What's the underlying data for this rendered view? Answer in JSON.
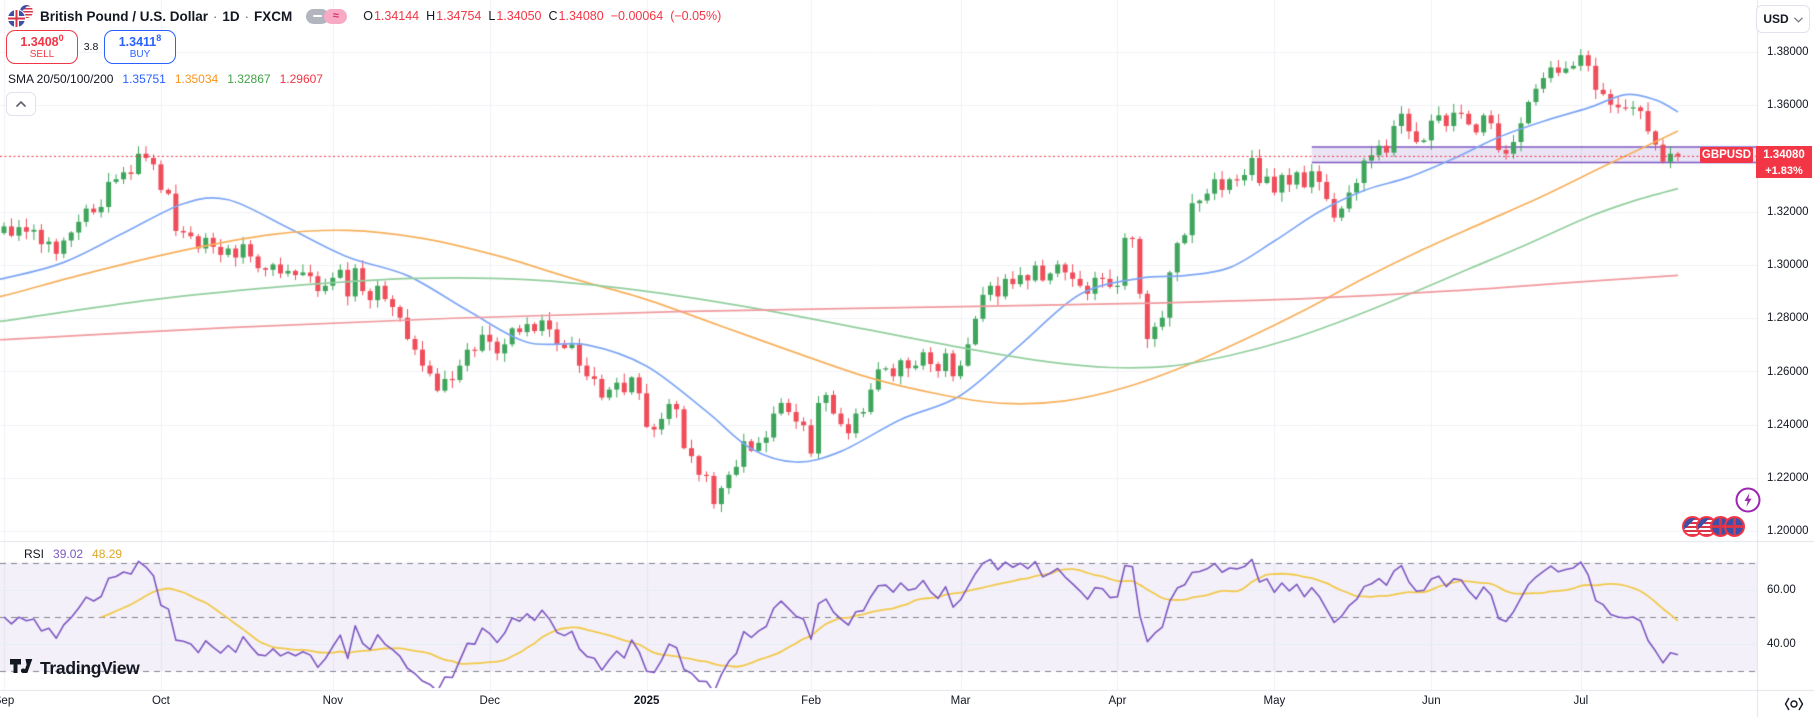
{
  "header": {
    "symbol": "British Pound / U.S. Dollar",
    "separator": "·",
    "interval": "1D",
    "exchange": "FXCM",
    "icons": {
      "wave": "≈"
    },
    "ohlc": {
      "o_label": "O",
      "o": "1.34144",
      "h_label": "H",
      "h": "1.34754",
      "l_label": "L",
      "l": "1.34050",
      "c_label": "C",
      "c": "1.34080",
      "change": "−0.00064",
      "change_pct": "(−0.05%)"
    }
  },
  "trade_panel": {
    "sell_price": "1.3408",
    "sell_sup": "0",
    "sell_label": "SELL",
    "spread": "3.8",
    "buy_price": "1.3411",
    "buy_sup": "8",
    "buy_label": "BUY"
  },
  "indicators": {
    "sma": {
      "label": "SMA 20/50/100/200",
      "values": [
        {
          "v": "1.35751"
        },
        {
          "v": "1.35034"
        },
        {
          "v": "1.32867"
        },
        {
          "v": "1.29607"
        }
      ]
    },
    "rsi": {
      "label": "RSI",
      "value": "39.02",
      "ma_value": "48.29"
    }
  },
  "price_scale": {
    "currency": "USD",
    "symbol_label": "GBPUSD",
    "last_price": "1.34080",
    "change_pct": "+1.83%"
  },
  "logo": {
    "text": "TradingView"
  },
  "palette": {
    "up_candle": "#3fa55c",
    "down_candle": "#ef4d5a",
    "sma20": "#7ea6f5",
    "sma50": "#f7b05c",
    "sma100": "#93cf9e",
    "sma200": "#f09a9e",
    "sma20_text": "#2962ff",
    "sma50_text": "#f7941d",
    "sma100_text": "#43a047",
    "sma200_text": "#f23645",
    "accent_red": "#f23645",
    "accent_blue": "#2962ff",
    "rsi_line": "#7e57c2",
    "rsi_ma_line": "#f2c94c",
    "channel_fill": "rgba(126,87,194,0.16)",
    "channel_border": "#7e57c2",
    "grid": "#f0f2f7",
    "separator": "#e0e3eb"
  },
  "event_markers": {
    "lightning": true,
    "flag_count": 4
  },
  "chart_data": {
    "type": "candlestick",
    "symbol": "GBPUSD",
    "interval": "1D",
    "current_price": 1.3408,
    "price_axis": {
      "min": 1.2,
      "max": 1.38,
      "tick_step": 0.02,
      "ticks": [
        {
          "label": "1.38000",
          "value": 1.38
        },
        {
          "label": "1.36000",
          "value": 1.36
        },
        {
          "label": "1.32000",
          "value": 1.32
        },
        {
          "label": "1.30000",
          "value": 1.3
        },
        {
          "label": "1.28000",
          "value": 1.28
        },
        {
          "label": "1.26000",
          "value": 1.26
        },
        {
          "label": "1.24000",
          "value": 1.24
        },
        {
          "label": "1.22000",
          "value": 1.22
        },
        {
          "label": "1.20000",
          "value": 1.2
        }
      ]
    },
    "x_ticks": [
      {
        "label": "Sep",
        "day": 0
      },
      {
        "label": "Oct",
        "day": 21
      },
      {
        "label": "Nov",
        "day": 44
      },
      {
        "label": "Dec",
        "day": 65
      },
      {
        "label": "2025",
        "day": 86,
        "bold": true
      },
      {
        "label": "Feb",
        "day": 108
      },
      {
        "label": "Mar",
        "day": 128
      },
      {
        "label": "Apr",
        "day": 149
      },
      {
        "label": "May",
        "day": 170
      },
      {
        "label": "Jun",
        "day": 191
      },
      {
        "label": "Jul",
        "day": 211
      }
    ],
    "first_open": 1.312,
    "closes": [
      1.3145,
      1.311,
      1.3142,
      1.3125,
      1.3132,
      1.3078,
      1.3088,
      1.3042,
      1.3092,
      1.3122,
      1.3162,
      1.3212,
      1.3198,
      1.3218,
      1.3312,
      1.3322,
      1.3348,
      1.3342,
      1.3418,
      1.3402,
      1.3378,
      1.3282,
      1.3268,
      1.3128,
      1.3122,
      1.3108,
      1.3062,
      1.3102,
      1.3068,
      1.3038,
      1.3062,
      1.3028,
      1.3078,
      1.3032,
      1.2988,
      1.2982,
      1.3002,
      1.2968,
      1.2978,
      1.2962,
      1.2972,
      1.2958,
      1.2902,
      1.2922,
      1.2952,
      1.2982,
      1.2882,
      1.2988,
      1.2902,
      1.2868,
      1.2922,
      1.2872,
      1.2842,
      1.2802,
      1.2722,
      1.2682,
      1.2622,
      1.2592,
      1.2528,
      1.2572,
      1.2568,
      1.2622,
      1.2682,
      1.2678,
      1.2738,
      1.2712,
      1.2668,
      1.2702,
      1.2762,
      1.2748,
      1.2778,
      1.2752,
      1.2792,
      1.2758,
      1.2702,
      1.2688,
      1.2702,
      1.2622,
      1.2582,
      1.2572,
      1.2502,
      1.2532,
      1.2558,
      1.2522,
      1.2578,
      1.2518,
      1.2392,
      1.2382,
      1.2422,
      1.2478,
      1.2458,
      1.2312,
      1.2282,
      1.2212,
      1.2208,
      1.2102,
      1.2162,
      1.2212,
      1.2242,
      1.2338,
      1.2302,
      1.2332,
      1.2352,
      1.2442,
      1.2482,
      1.2448,
      1.2412,
      1.2398,
      1.2292,
      1.2482,
      1.2512,
      1.2442,
      1.2402,
      1.2368,
      1.2442,
      1.2448,
      1.2532,
      1.2608,
      1.2612,
      1.2582,
      1.2642,
      1.2612,
      1.2622,
      1.2672,
      1.2628,
      1.2602,
      1.2668,
      1.2582,
      1.2622,
      1.2702,
      1.2798,
      1.2888,
      1.2922,
      1.2882,
      1.2948,
      1.2928,
      1.2962,
      1.2942,
      1.2998,
      1.2942,
      1.2968,
      1.3002,
      1.2972,
      1.2948,
      1.2922,
      1.2892,
      1.2952,
      1.2948,
      1.2918,
      1.2922,
      1.3102,
      1.3098,
      1.2892,
      1.2722,
      1.2768,
      1.2802,
      1.2972,
      1.3082,
      1.3112,
      1.3232,
      1.3242,
      1.3268,
      1.3322,
      1.3282,
      1.3322,
      1.3318,
      1.3338,
      1.3402,
      1.3308,
      1.3332,
      1.3272,
      1.3338,
      1.3302,
      1.3348,
      1.3292,
      1.3352,
      1.3312,
      1.3248,
      1.3178,
      1.3212,
      1.3272,
      1.3308,
      1.3392,
      1.3412,
      1.3448,
      1.3422,
      1.3522,
      1.3568,
      1.3502,
      1.3462,
      1.3468,
      1.3542,
      1.3562,
      1.3522,
      1.3572,
      1.3568,
      1.3528,
      1.3498,
      1.3562,
      1.3532,
      1.3432,
      1.3418,
      1.3462,
      1.3532,
      1.3612,
      1.3662,
      1.3702,
      1.3742,
      1.3722,
      1.3738,
      1.3748,
      1.3788,
      1.3748,
      1.3658,
      1.3642,
      1.3602,
      1.3592,
      1.3588,
      1.3592,
      1.3578,
      1.3502,
      1.3452,
      1.3388,
      1.3418,
      1.3408
    ],
    "channel_band": {
      "start_day": 175,
      "top": 1.3443,
      "bottom": 1.3385
    },
    "overlays": [
      {
        "name": "SMA 20",
        "color": "#7ea6f5",
        "anchors": [
          [
            -1,
            1.295
          ],
          [
            0,
            1.295
          ],
          [
            8,
            1.301
          ],
          [
            16,
            1.312
          ],
          [
            24,
            1.323
          ],
          [
            30,
            1.3245
          ],
          [
            38,
            1.314
          ],
          [
            46,
            1.303
          ],
          [
            54,
            1.296
          ],
          [
            62,
            1.283
          ],
          [
            70,
            1.271
          ],
          [
            78,
            1.27
          ],
          [
            86,
            1.262
          ],
          [
            94,
            1.245
          ],
          [
            100,
            1.231
          ],
          [
            106,
            1.226
          ],
          [
            112,
            1.23
          ],
          [
            120,
            1.242
          ],
          [
            128,
            1.251
          ],
          [
            136,
            1.27
          ],
          [
            144,
            1.289
          ],
          [
            152,
            1.295
          ],
          [
            158,
            1.296
          ],
          [
            164,
            1.299
          ],
          [
            170,
            1.309
          ],
          [
            176,
            1.32
          ],
          [
            182,
            1.328
          ],
          [
            188,
            1.333
          ],
          [
            194,
            1.34
          ],
          [
            200,
            1.348
          ],
          [
            206,
            1.354
          ],
          [
            212,
            1.359
          ],
          [
            217,
            1.364
          ],
          [
            221,
            1.362
          ],
          [
            224,
            1.3575
          ]
        ]
      },
      {
        "name": "SMA 50",
        "color": "#f7b05c",
        "anchors": [
          [
            -1,
            1.2885
          ],
          [
            0,
            1.2885
          ],
          [
            12,
            1.2975
          ],
          [
            24,
            1.3055
          ],
          [
            36,
            1.3115
          ],
          [
            46,
            1.313
          ],
          [
            56,
            1.31
          ],
          [
            66,
            1.3035
          ],
          [
            76,
            1.295
          ],
          [
            86,
            1.287
          ],
          [
            96,
            1.277
          ],
          [
            106,
            1.267
          ],
          [
            116,
            1.2575
          ],
          [
            126,
            1.251
          ],
          [
            134,
            1.248
          ],
          [
            142,
            1.249
          ],
          [
            150,
            1.254
          ],
          [
            158,
            1.262
          ],
          [
            166,
            1.272
          ],
          [
            174,
            1.283
          ],
          [
            182,
            1.295
          ],
          [
            190,
            1.306
          ],
          [
            198,
            1.316
          ],
          [
            206,
            1.326
          ],
          [
            214,
            1.337
          ],
          [
            220,
            1.345
          ],
          [
            224,
            1.3503
          ]
        ]
      },
      {
        "name": "SMA 100",
        "color": "#93cf9e",
        "anchors": [
          [
            -1,
            1.279
          ],
          [
            0,
            1.279
          ],
          [
            20,
            1.287
          ],
          [
            40,
            1.2925
          ],
          [
            55,
            1.295
          ],
          [
            70,
            1.2945
          ],
          [
            85,
            1.2905
          ],
          [
            100,
            1.284
          ],
          [
            115,
            1.276
          ],
          [
            130,
            1.268
          ],
          [
            140,
            1.2635
          ],
          [
            148,
            1.2615
          ],
          [
            156,
            1.262
          ],
          [
            164,
            1.266
          ],
          [
            172,
            1.272
          ],
          [
            180,
            1.28
          ],
          [
            188,
            1.289
          ],
          [
            196,
            1.2985
          ],
          [
            204,
            1.308
          ],
          [
            212,
            1.318
          ],
          [
            218,
            1.324
          ],
          [
            224,
            1.3287
          ]
        ]
      },
      {
        "name": "SMA 200",
        "color": "#f09a9e",
        "anchors": [
          [
            -1,
            1.272
          ],
          [
            0,
            1.272
          ],
          [
            30,
            1.2765
          ],
          [
            60,
            1.28
          ],
          [
            90,
            1.2825
          ],
          [
            120,
            1.284
          ],
          [
            150,
            1.2855
          ],
          [
            175,
            1.2875
          ],
          [
            195,
            1.2905
          ],
          [
            210,
            1.2935
          ],
          [
            224,
            1.2961
          ]
        ]
      }
    ],
    "rsi_panel": {
      "period": 14,
      "ma_period": 14,
      "upper": 70,
      "middle": 50,
      "lower": 30,
      "last": 39.02,
      "ma_last": 48.29,
      "ticks": [
        {
          "label": "60.00",
          "value": 60
        },
        {
          "label": "40.00",
          "value": 40
        }
      ]
    }
  }
}
